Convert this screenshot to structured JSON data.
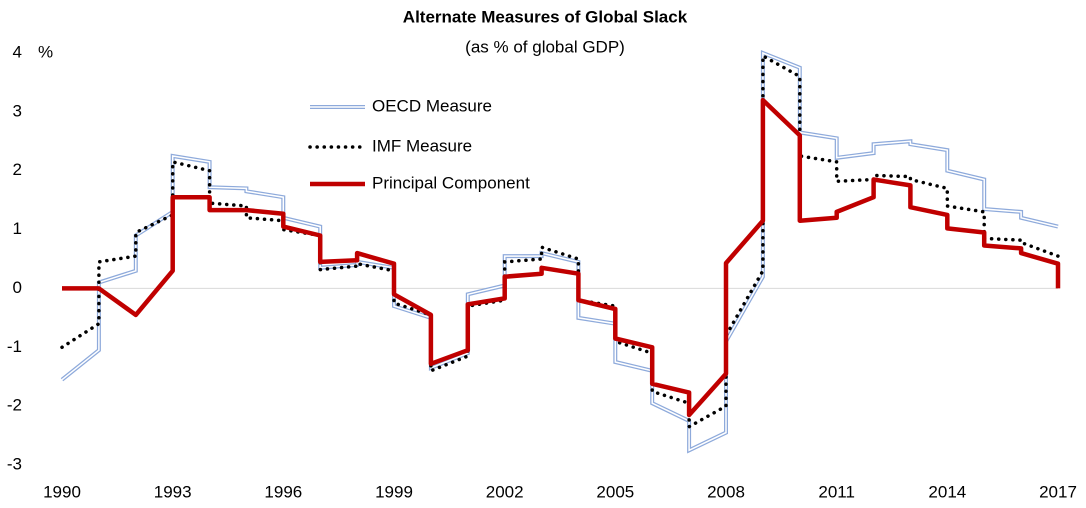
{
  "chart_data": {
    "type": "line",
    "title": "Alternate Measures of Global Slack",
    "subtitle": "(as % of global GDP)",
    "y_unit": "%",
    "xlim": [
      1990,
      2017
    ],
    "xticks": [
      1990,
      1993,
      1996,
      1999,
      2002,
      2005,
      2008,
      2011,
      2014,
      2017
    ],
    "ylim": [
      -3,
      4
    ],
    "yticks": [
      -3,
      -2,
      -1,
      0,
      1,
      2,
      3,
      4
    ],
    "zero_line": true,
    "legend": "upper center",
    "series": [
      {
        "name": "OECD Measure",
        "color": "#8eaadb",
        "style": "double",
        "x": [
          1990,
          1991,
          1991,
          1992,
          1992,
          1993,
          1993,
          1994,
          1994,
          1995,
          1995,
          1996,
          1996,
          1997,
          1997,
          1998,
          1998,
          1999,
          1999,
          2000,
          2000,
          2001,
          2001,
          2002,
          2002,
          2003,
          2003,
          2004,
          2004,
          2005,
          2005,
          2006,
          2006,
          2007,
          2007,
          2008,
          2008,
          2009,
          2009,
          2010,
          2010,
          2011,
          2011,
          2012,
          2012,
          2013,
          2013,
          2014,
          2014,
          2015,
          2015,
          2016,
          2016,
          2017
        ],
        "values": [
          -1.55,
          -1.05,
          0.1,
          0.3,
          0.9,
          1.3,
          2.25,
          2.15,
          1.72,
          1.7,
          1.65,
          1.55,
          1.2,
          1.05,
          0.35,
          0.4,
          0.45,
          0.35,
          -0.3,
          -0.5,
          -1.35,
          -1.1,
          -0.1,
          0.05,
          0.55,
          0.55,
          0.6,
          0.45,
          -0.5,
          -0.6,
          -1.25,
          -1.4,
          -1.95,
          -2.25,
          -2.75,
          -2.45,
          -0.9,
          0.2,
          4.0,
          3.75,
          2.65,
          2.55,
          2.22,
          2.3,
          2.45,
          2.5,
          2.45,
          2.35,
          2.0,
          1.85,
          1.35,
          1.3,
          1.2,
          1.05
        ]
      },
      {
        "name": "IMF Measure",
        "color": "#000000",
        "style": "dotted",
        "x": [
          1990,
          1991,
          1991,
          1992,
          1992,
          1993,
          1993,
          1994,
          1994,
          1995,
          1995,
          1996,
          1996,
          1997,
          1997,
          1998,
          1998,
          1999,
          1999,
          2000,
          2000,
          2001,
          2001,
          2002,
          2002,
          2003,
          2003,
          2004,
          2004,
          2005,
          2005,
          2006,
          2006,
          2007,
          2007,
          2008,
          2008,
          2009,
          2009,
          2010,
          2010,
          2011,
          2011,
          2012,
          2012,
          2013,
          2013,
          2014,
          2014,
          2015,
          2015,
          2016,
          2016,
          2017
        ],
        "values": [
          -1.0,
          -0.6,
          0.45,
          0.55,
          0.95,
          1.25,
          2.15,
          2.0,
          1.45,
          1.4,
          1.2,
          1.15,
          1.0,
          0.9,
          0.32,
          0.38,
          0.42,
          0.3,
          -0.25,
          -0.45,
          -1.4,
          -1.15,
          -0.3,
          -0.2,
          0.45,
          0.5,
          0.7,
          0.5,
          -0.2,
          -0.3,
          -0.9,
          -1.1,
          -1.75,
          -1.95,
          -2.35,
          -2.0,
          -0.8,
          0.3,
          3.95,
          3.6,
          2.25,
          2.15,
          1.82,
          1.85,
          1.92,
          1.9,
          1.85,
          1.7,
          1.4,
          1.3,
          0.85,
          0.82,
          0.78,
          0.55
        ]
      },
      {
        "name": "Principal Component",
        "color": "#c00000",
        "style": "solid",
        "x": [
          1990,
          1991,
          1992,
          1993,
          1993,
          1994,
          1994,
          1995,
          1996,
          1996,
          1997,
          1997,
          1998,
          1998,
          1999,
          1999,
          2000,
          2000,
          2001,
          2001,
          2002,
          2002,
          2003,
          2003,
          2004,
          2004,
          2005,
          2005,
          2006,
          2006,
          2007,
          2007,
          2008,
          2008,
          2009,
          2009,
          2010,
          2010,
          2011,
          2011,
          2012,
          2012,
          2013,
          2013,
          2014,
          2014,
          2015,
          2015,
          2016,
          2016,
          2017,
          2017
        ],
        "values": [
          0,
          0,
          -0.45,
          0.3,
          1.55,
          1.55,
          1.33,
          1.33,
          1.27,
          1.05,
          0.9,
          0.45,
          0.48,
          0.6,
          0.42,
          -0.1,
          -0.45,
          -1.28,
          -1.05,
          -0.27,
          -0.17,
          0.2,
          0.25,
          0.35,
          0.25,
          -0.2,
          -0.35,
          -0.85,
          -1.0,
          -1.62,
          -1.77,
          -2.15,
          -1.45,
          0.43,
          1.15,
          3.2,
          2.6,
          1.15,
          1.2,
          1.3,
          1.55,
          1.85,
          1.75,
          1.38,
          1.25,
          1.02,
          0.95,
          0.73,
          0.68,
          0.6,
          0.42,
          0
        ]
      }
    ]
  }
}
